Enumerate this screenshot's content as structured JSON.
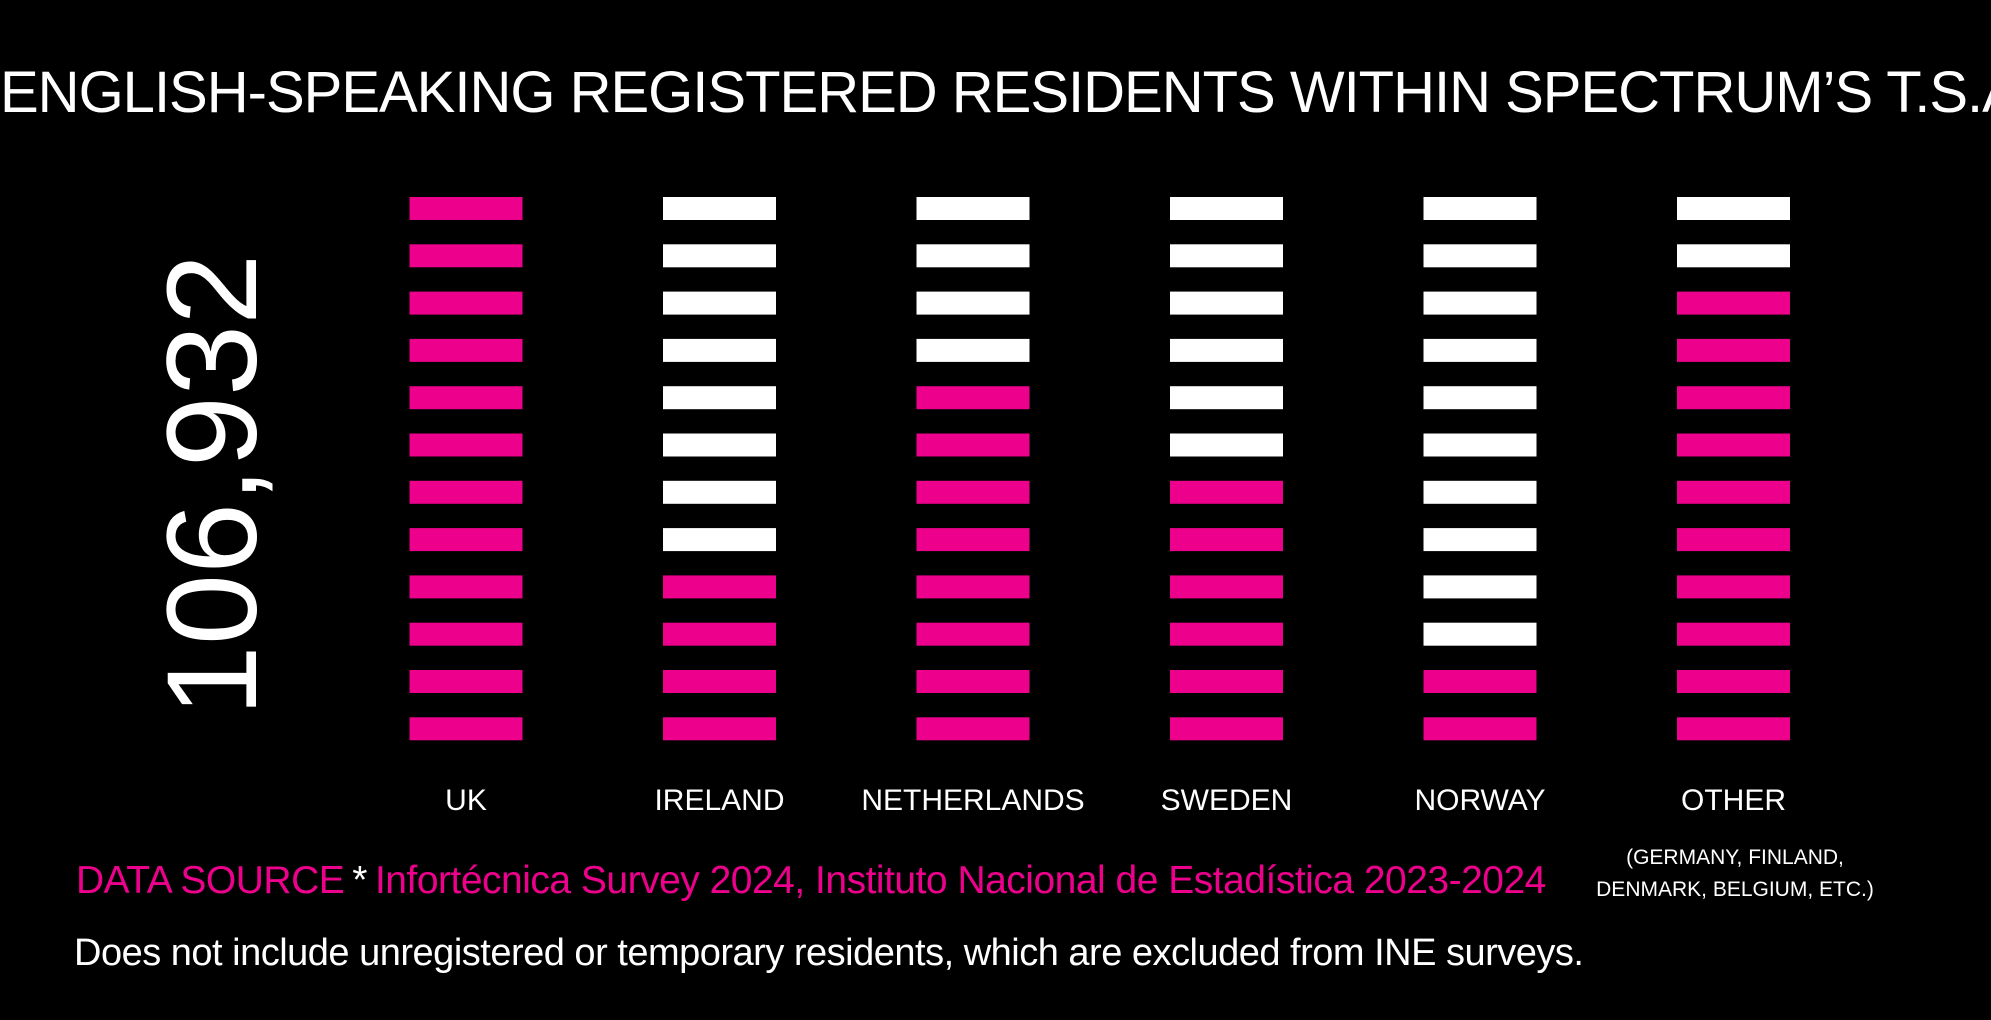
{
  "title": "ENGLISH-SPEAKING REGISTERED RESIDENTS WITHIN SPECTRUM’S T.S.A.",
  "total": "106,932",
  "colors": {
    "background": "#000000",
    "highlight": "#ec008c",
    "base": "#ffffff"
  },
  "chart_data": {
    "type": "bar",
    "title": "ENGLISH-SPEAKING REGISTERED RESIDENTS WITHIN SPECTRUM’S T.S.A.",
    "categories": [
      "UK",
      "IRELAND",
      "NETHERLANDS",
      "SWEDEN",
      "NORWAY",
      "OTHER"
    ],
    "units_per_column": 12,
    "values": [
      12,
      4,
      8,
      6,
      2,
      10
    ],
    "highlight_color": "#ec008c",
    "base_color": "#ffffff"
  },
  "other_note": {
    "line1": "(GERMANY, FINLAND,",
    "line2": "DENMARK, BELGIUM, ETC.)"
  },
  "source": {
    "label": "DATA SOURCE",
    "separator": "*",
    "text": "Infortécnica Survey 2024, Instituto Nacional de Estadística 2023-2024"
  },
  "note": "Does not include unregistered or temporary residents, which are excluded from INE surveys."
}
